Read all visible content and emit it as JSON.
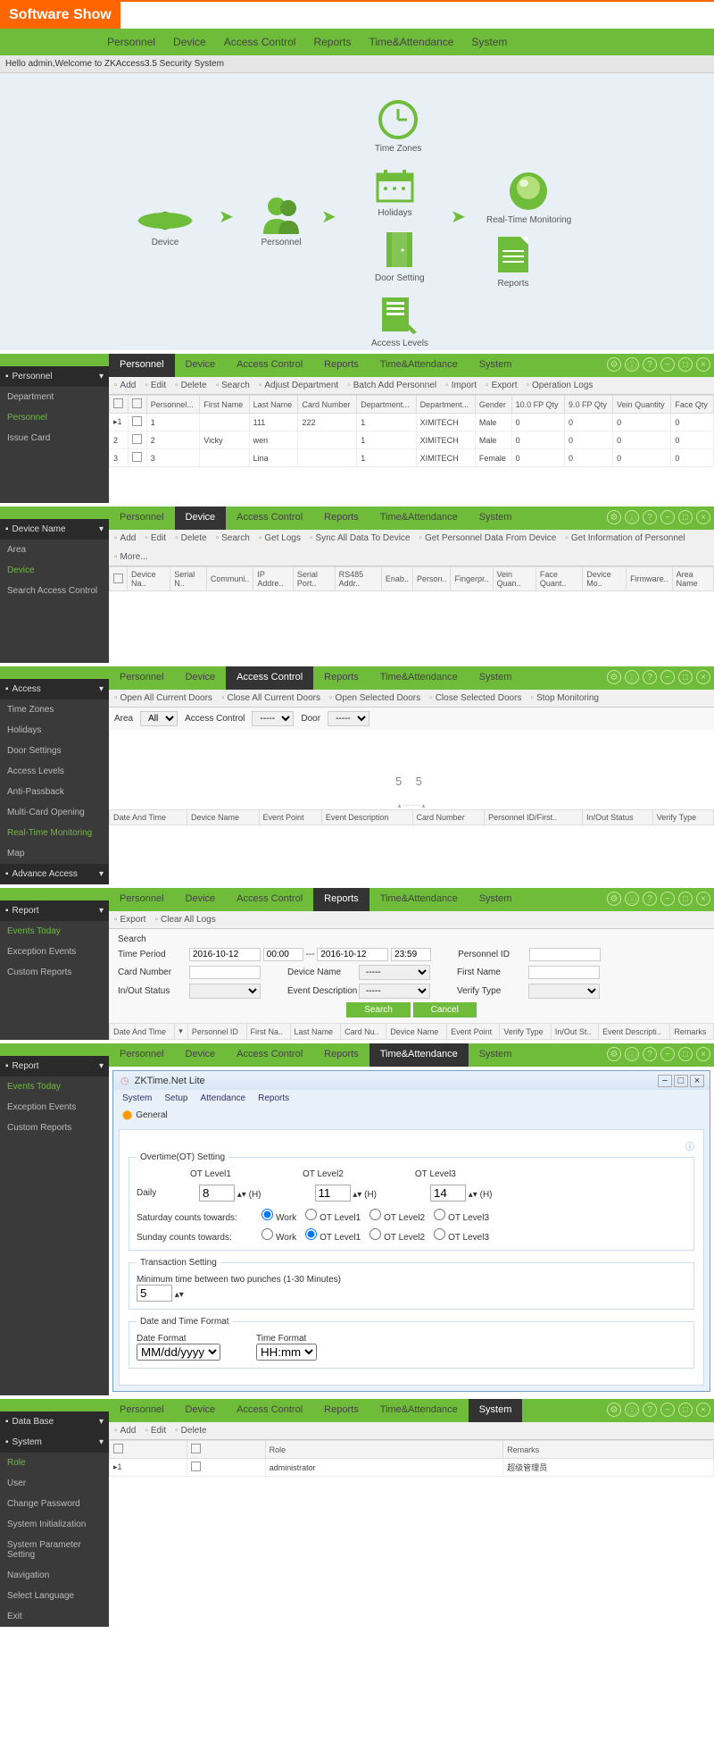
{
  "banner": "Software Show",
  "nav": [
    "Personnel",
    "Device",
    "Access Control",
    "Reports",
    "Time&Attendance",
    "System"
  ],
  "welcome": "Hello admin,Welcome to ZKAccess3.5 Security System",
  "diagram": {
    "device": "Device",
    "personnel": "Personnel",
    "timezones": "Time Zones",
    "holidays": "Holidays",
    "doorsetting": "Door Setting",
    "accesslevels": "Access Levels",
    "monitoring": "Real-Time Monitoring",
    "reports": "Reports"
  },
  "winicons": [
    "⚙",
    "ⓘ",
    "?",
    "−",
    "□",
    "×"
  ],
  "s1": {
    "active": "Personnel",
    "side_hdr": "Personnel",
    "side": [
      "Department",
      "Personnel",
      "Issue Card"
    ],
    "side_active": "Personnel",
    "tools": [
      "Add",
      "Edit",
      "Delete",
      "Search",
      "Adjust Department",
      "Batch Add Personnel",
      "Import",
      "Export",
      "Operation Logs"
    ],
    "cols": [
      "",
      "",
      "Personnel...",
      "First Name",
      "Last Name",
      "Card Number",
      "Department...",
      "Department...",
      "Gender",
      "10.0 FP Qty",
      "9.0 FP Qty",
      "Vein Quantity",
      "Face Qty"
    ],
    "rows": [
      [
        "▸1",
        "",
        "1",
        "",
        "111",
        "222",
        "1",
        "XIMITECH",
        "Male",
        "0",
        "0",
        "0",
        "0"
      ],
      [
        "2",
        "",
        "2",
        "Vicky",
        "wen",
        "",
        "1",
        "XIMITECH",
        "Male",
        "0",
        "0",
        "0",
        "0"
      ],
      [
        "3",
        "",
        "3",
        "",
        "Lina",
        "",
        "1",
        "XIMITECH",
        "Female",
        "0",
        "0",
        "0",
        "0"
      ]
    ]
  },
  "s2": {
    "active": "Device",
    "side_hdr": "Device Name",
    "side": [
      "Area",
      "Device",
      "Search Access Control"
    ],
    "side_active": "Device",
    "tools": [
      "Add",
      "Edit",
      "Delete",
      "Search",
      "Get Logs",
      "Sync All Data To Device",
      "Get Personnel Data From Device",
      "Get Information of Personnel",
      "More..."
    ],
    "cols": [
      "",
      "Device Na..",
      "Serial N..",
      "Communi..",
      "IP Addre..",
      "Serial Port..",
      "RS485 Addr..",
      "Enab..",
      "Person..",
      "Fingerpr..",
      "Vein Quan..",
      "Face Quant..",
      "Device Mo..",
      "Firmware..",
      "Area Name"
    ]
  },
  "s3": {
    "active": "Access Control",
    "side_hdr": "Access",
    "side": [
      "Time Zones",
      "Holidays",
      "Door Settings",
      "Access Levels",
      "Anti-Passback",
      "Multi-Card Opening",
      "Real-Time Monitoring",
      "Map"
    ],
    "side_hdr2": "Advance Access",
    "side_active": "Real-Time Monitoring",
    "tools": [
      "Open All Current Doors",
      "Close All Current Doors",
      "Open Selected Doors",
      "Close Selected Doors",
      "Stop Monitoring"
    ],
    "filters": {
      "area_l": "Area",
      "area_v": "All",
      "ac_l": "Access Control",
      "ac_v": "-----",
      "door_l": "Door",
      "door_v": "-----"
    },
    "center": "5 5",
    "cols": [
      "Date And Time",
      "Device Name",
      "Event Point",
      "Event Description",
      "Card Number",
      "Personnel ID/First..",
      "In/Out Status",
      "Verify Type"
    ]
  },
  "s4": {
    "active": "Reports",
    "side_hdr": "Report",
    "side": [
      "Events Today",
      "Exception Events",
      "Custom Reports"
    ],
    "side_active": "Events Today",
    "tools": [
      "Export",
      "Clear All Logs"
    ],
    "search_title": "Search",
    "f": {
      "tp": "Time Period",
      "d1": "2016-10-12",
      "t1": "00:00",
      "dash": "---",
      "d2": "2016-10-12",
      "t2": "23:59",
      "pid": "Personnel ID",
      "cn": "Card Number",
      "dn": "Device Name",
      "dnv": "-----",
      "fn": "First Name",
      "io": "In/Out Status",
      "ed": "Event Description",
      "edv": "-----",
      "vt": "Verify Type",
      "search": "Search",
      "cancel": "Cancel"
    },
    "cols": [
      "Date And Time",
      "▾",
      "Personnel ID",
      "First Na..",
      "Last Name",
      "Card Nu..",
      "Device Name",
      "Event Point",
      "Verify Type",
      "In/Out St..",
      "Event Descripti..",
      "Remarks"
    ]
  },
  "s5": {
    "active": "Time&Attendance",
    "side_hdr": "Report",
    "side": [
      "Events Today",
      "Exception Events",
      "Custom Reports"
    ],
    "side_active": "Events Today",
    "dlg": {
      "title": "ZKTime.Net Lite",
      "tabs": [
        "System",
        "Setup",
        "Attendance",
        "Reports"
      ],
      "gen": "General",
      "ot_title": "Overtime(OT) Setting",
      "lvl": [
        "OT Level1",
        "OT Level2",
        "OT Level3"
      ],
      "daily": "Daily",
      "h": "(H)",
      "v": [
        8,
        11,
        14
      ],
      "sat": "Saturday counts towards:",
      "sun": "Sunday counts towards:",
      "opts": [
        "Work",
        "OT Level1",
        "OT Level2",
        "OT Level3"
      ],
      "sat_sel": 0,
      "sun_sel": 1,
      "tx_title": "Transaction Setting",
      "tx_label": "Minimum time between two punches (1-30 Minutes)",
      "tx_v": 5,
      "dt_title": "Date and Time Format",
      "df": "Date Format",
      "dfv": "MM/dd/yyyy",
      "tf": "Time Format",
      "tfv": "HH:mm"
    }
  },
  "s6": {
    "active": "System",
    "side_hdr1": "Data Base",
    "side_hdr2": "System",
    "side": [
      "Role",
      "User",
      "Change Password",
      "System Initialization",
      "System Parameter Setting",
      "Navigation",
      "Select Language",
      "Exit"
    ],
    "side_active": "Role",
    "tools": [
      "Add",
      "Edit",
      "Delete"
    ],
    "cols": [
      "",
      "",
      "Role",
      "Remarks"
    ],
    "rows": [
      [
        "▸1",
        "",
        "administrator",
        "超级管理员"
      ]
    ]
  }
}
